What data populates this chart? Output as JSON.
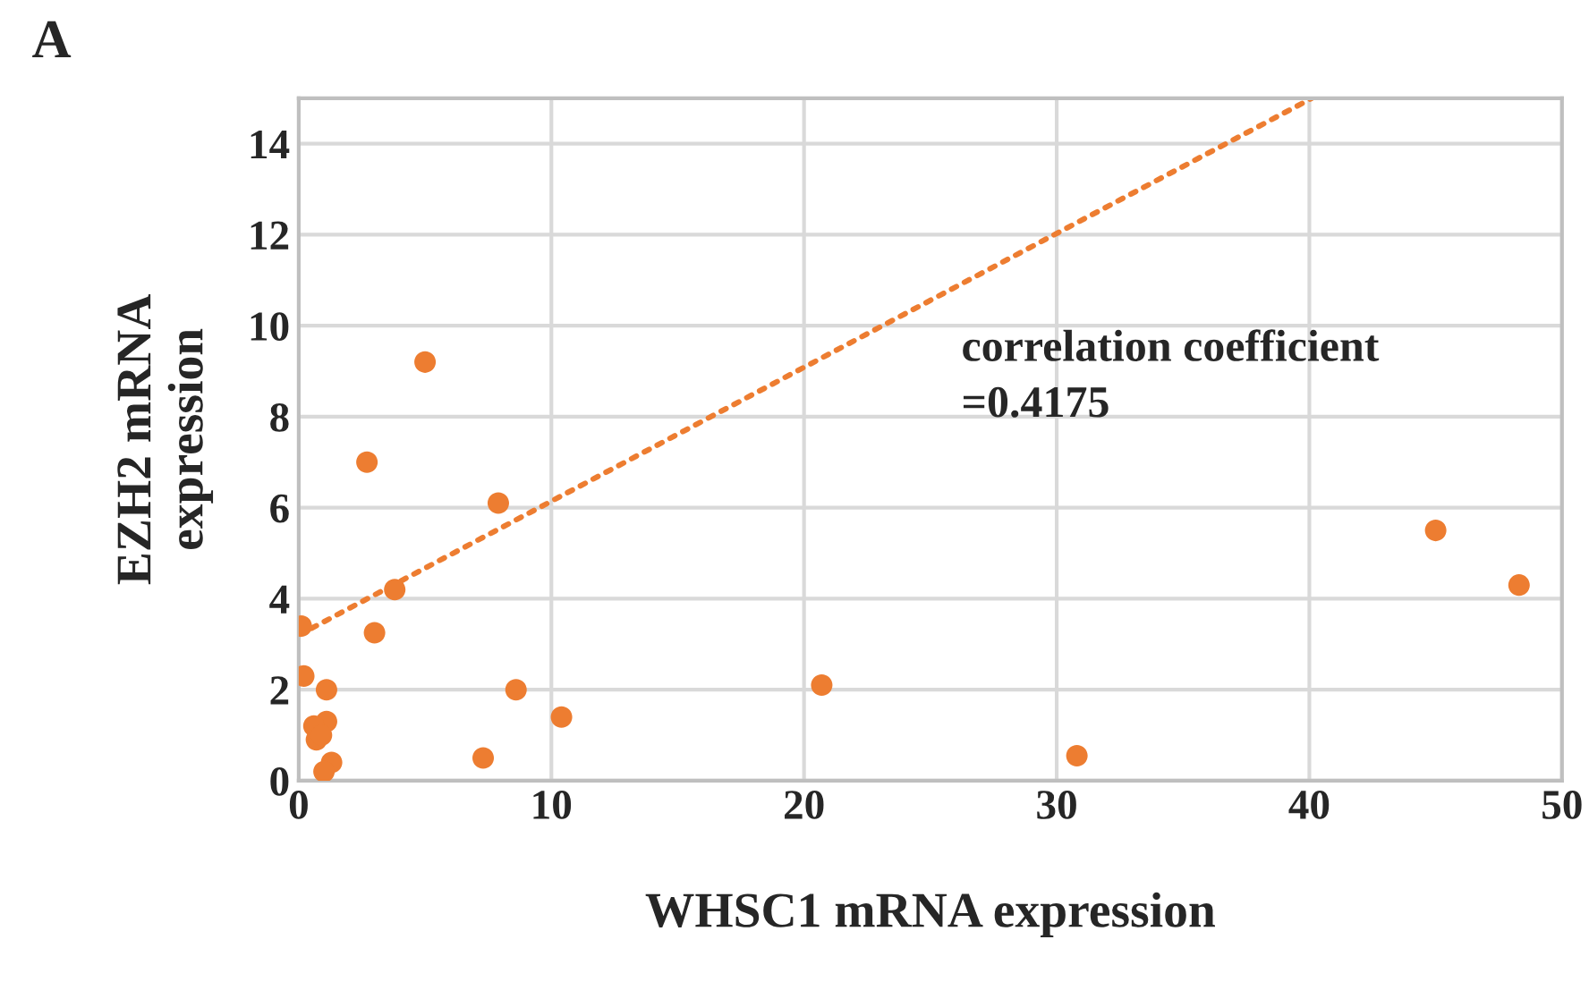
{
  "chart_data": {
    "type": "scatter",
    "xlabel": "WHSC1 mRNA expression",
    "ylabel": "EZH2 mRNA\nexpression",
    "annotations": [
      "A",
      "correlation coefficient\n=0.4175"
    ],
    "xlim": [
      0,
      50
    ],
    "xticks": [
      0,
      10,
      20,
      30,
      40,
      50
    ],
    "ylim": [
      0,
      15
    ],
    "yticks": [
      0,
      2,
      4,
      6,
      8,
      10,
      12,
      14
    ],
    "grid": true,
    "series": [
      {
        "marker": "circle",
        "color": "#ed7d31",
        "x": [
          5.0,
          2.7,
          7.9,
          3.8,
          0.1,
          3.0,
          0.2,
          1.1,
          8.6,
          20.7,
          1.1,
          0.6,
          0.7,
          0.9,
          10.4,
          7.3,
          1.3,
          1.0,
          30.8,
          45.0,
          48.3
        ],
        "values": [
          9.2,
          7.0,
          6.1,
          4.2,
          3.4,
          3.25,
          2.3,
          2.0,
          2.0,
          2.1,
          1.3,
          1.2,
          0.9,
          1.0,
          1.4,
          0.5,
          0.4,
          0.2,
          0.55,
          5.5,
          4.3
        ]
      },
      {
        "type": "line",
        "color": "#ed7d31",
        "line_style": "dotted",
        "x": [
          0,
          40.1
        ],
        "values": [
          3.2,
          15
        ]
      }
    ]
  }
}
